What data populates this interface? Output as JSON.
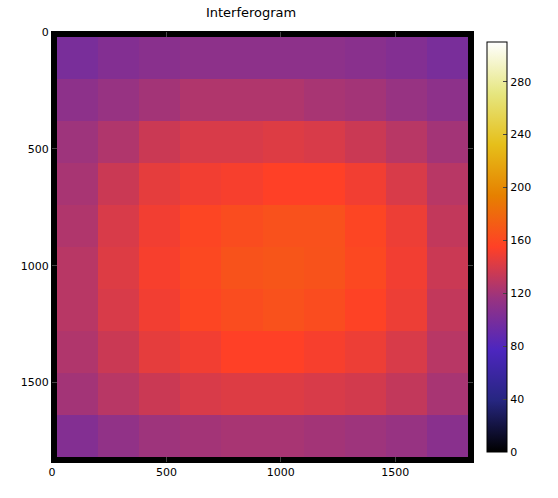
{
  "chart_data": {
    "type": "heatmap",
    "title": "Interferogram",
    "x_edges": [
      0,
      20,
      200,
      380,
      560,
      740,
      920,
      1100,
      1280,
      1460,
      1640,
      1820,
      1840
    ],
    "y_edges": [
      0,
      20,
      200,
      380,
      560,
      740,
      920,
      1100,
      1280,
      1460,
      1640,
      1820,
      1840
    ],
    "cells": [
      [
        0,
        0,
        0,
        0,
        0,
        0,
        0,
        0,
        0,
        0,
        0,
        0
      ],
      [
        0,
        100,
        105,
        108,
        110,
        110,
        110,
        110,
        108,
        105,
        100,
        0
      ],
      [
        0,
        110,
        115,
        120,
        125,
        125,
        125,
        122,
        120,
        115,
        110,
        0
      ],
      [
        0,
        118,
        125,
        135,
        140,
        140,
        142,
        140,
        135,
        128,
        120,
        0
      ],
      [
        0,
        122,
        135,
        145,
        150,
        152,
        155,
        155,
        150,
        140,
        128,
        0
      ],
      [
        0,
        125,
        140,
        150,
        158,
        162,
        165,
        165,
        158,
        148,
        132,
        0
      ],
      [
        0,
        128,
        142,
        152,
        160,
        166,
        168,
        166,
        160,
        150,
        135,
        0
      ],
      [
        0,
        128,
        140,
        150,
        158,
        162,
        165,
        162,
        156,
        148,
        132,
        0
      ],
      [
        0,
        125,
        135,
        145,
        150,
        155,
        155,
        152,
        148,
        140,
        128,
        0
      ],
      [
        0,
        120,
        128,
        135,
        140,
        142,
        142,
        140,
        138,
        132,
        122,
        0
      ],
      [
        0,
        105,
        112,
        118,
        120,
        122,
        122,
        120,
        118,
        115,
        108,
        0
      ],
      [
        0,
        0,
        0,
        0,
        0,
        0,
        0,
        0,
        0,
        0,
        0,
        0
      ]
    ],
    "xlim": [
      0,
      1840
    ],
    "ylim": [
      1840,
      0
    ],
    "xticks": [
      0,
      500,
      1000,
      1500
    ],
    "yticks": [
      0,
      500,
      1000,
      1500
    ],
    "color_range": [
      0,
      310
    ],
    "color_ticks": [
      0,
      40,
      80,
      120,
      160,
      200,
      240,
      280
    ],
    "grid": false
  }
}
